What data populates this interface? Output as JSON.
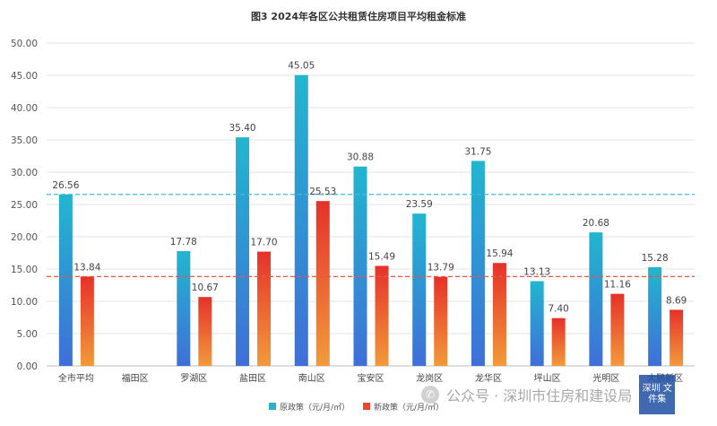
{
  "chart_data": {
    "type": "bar",
    "title": "图3 2024年各区公共租赁住房项目平均租金标准",
    "categories": [
      "全市平均",
      "福田区",
      "罗湖区",
      "盐田区",
      "南山区",
      "宝安区",
      "龙岗区",
      "龙华区",
      "坪山区",
      "光明区",
      "大鹏新区"
    ],
    "series": [
      {
        "name": "原政策（元/月/㎡）",
        "values": [
          26.56,
          null,
          17.78,
          35.4,
          45.05,
          30.88,
          23.59,
          31.75,
          13.13,
          20.68,
          15.28
        ],
        "labels": [
          "26.56",
          "",
          "17.78",
          "35.40",
          "45.05",
          "30.88",
          "23.59",
          "31.75",
          "13.13",
          "20.68",
          "15.28"
        ],
        "color": "#2ab0d1"
      },
      {
        "name": "新政策（元/月/㎡）",
        "values": [
          13.84,
          null,
          10.67,
          17.7,
          25.53,
          15.49,
          13.79,
          15.94,
          7.4,
          11.16,
          8.69
        ],
        "labels": [
          "13.84",
          "",
          "10.67",
          "17.70",
          "25.53",
          "15.49",
          "13.79",
          "15.94",
          "7.40",
          "11.16",
          "8.69"
        ],
        "color": "#e8482f"
      }
    ],
    "reference_lines": [
      {
        "series": "原政策（元/月/㎡）",
        "value": 26.56,
        "color": "#4bb7d6",
        "style": "dashed"
      },
      {
        "series": "新政策（元/月/㎡）",
        "value": 13.84,
        "color": "#e2584a",
        "style": "dashed"
      }
    ],
    "ylim": [
      0,
      50
    ],
    "yticks": [
      "0.00",
      "5.00",
      "10.00",
      "15.00",
      "20.00",
      "25.00",
      "30.00",
      "35.00",
      "40.00",
      "45.00",
      "50.00"
    ],
    "grid": true,
    "legend_position": "bottom"
  },
  "watermark": {
    "text": "公众号 · 深圳市住房和建设局",
    "badge": "深圳\n文件集"
  }
}
